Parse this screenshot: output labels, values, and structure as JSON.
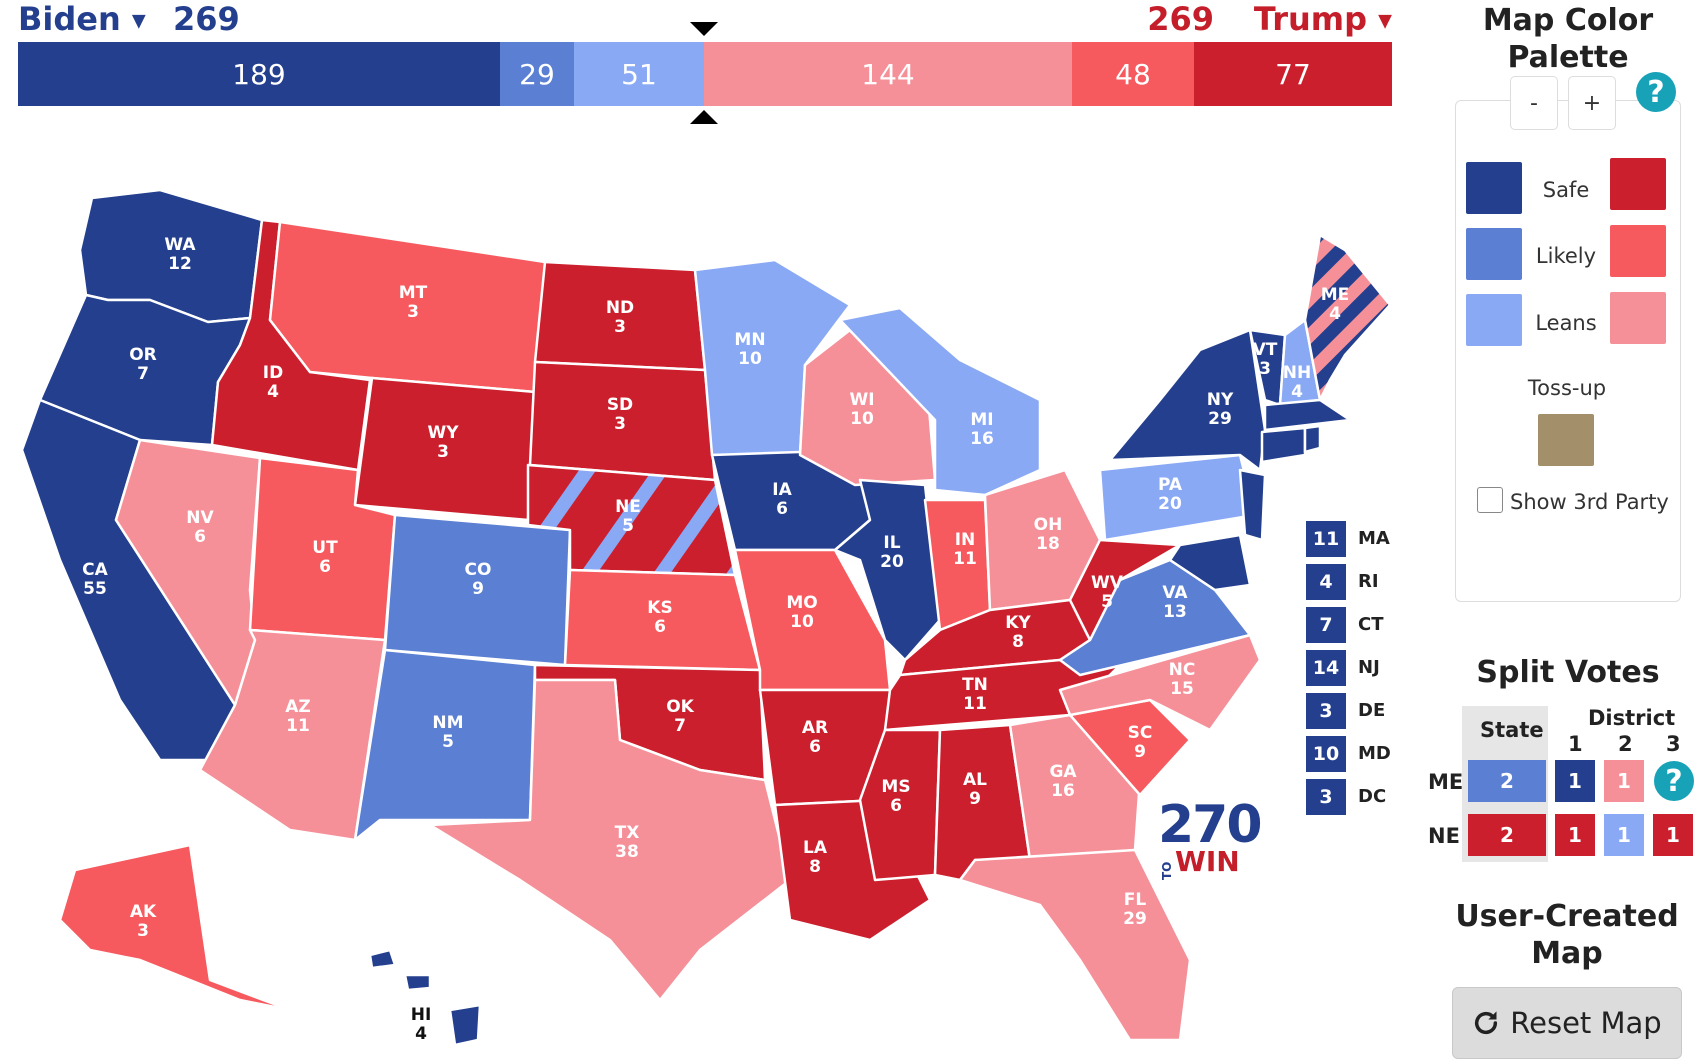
{
  "header": {
    "left_candidate": "Biden",
    "right_candidate": "Trump",
    "left_total": "269",
    "right_total": "269",
    "caret": "▼"
  },
  "bar": [
    {
      "value": "189",
      "color": "#233f8e"
    },
    {
      "value": "29",
      "color": "#5b7fd2"
    },
    {
      "value": "51",
      "color": "#8aa9f5"
    },
    {
      "value": "144",
      "color": "#f59099"
    },
    {
      "value": "48",
      "color": "#f65a5e"
    },
    {
      "value": "77",
      "color": "#cc1f2d"
    }
  ],
  "colors": {
    "safe_d": "#233f8e",
    "likely_d": "#5b7fd2",
    "leans_d": "#8aa9f5",
    "safe_r": "#cc1f2d",
    "likely_r": "#f65a5e",
    "leans_r": "#f59099",
    "tossup": "#a3906b"
  },
  "states": [
    {
      "abbr": "WA",
      "ev": "12"
    },
    {
      "abbr": "OR",
      "ev": "7"
    },
    {
      "abbr": "CA",
      "ev": "55"
    },
    {
      "abbr": "NV",
      "ev": "6"
    },
    {
      "abbr": "ID",
      "ev": "4"
    },
    {
      "abbr": "MT",
      "ev": "3"
    },
    {
      "abbr": "WY",
      "ev": "3"
    },
    {
      "abbr": "UT",
      "ev": "6"
    },
    {
      "abbr": "AZ",
      "ev": "11"
    },
    {
      "abbr": "CO",
      "ev": "9"
    },
    {
      "abbr": "NM",
      "ev": "5"
    },
    {
      "abbr": "ND",
      "ev": "3"
    },
    {
      "abbr": "SD",
      "ev": "3"
    },
    {
      "abbr": "NE",
      "ev": "5"
    },
    {
      "abbr": "KS",
      "ev": "6"
    },
    {
      "abbr": "OK",
      "ev": "7"
    },
    {
      "abbr": "TX",
      "ev": "38"
    },
    {
      "abbr": "MN",
      "ev": "10"
    },
    {
      "abbr": "IA",
      "ev": "6"
    },
    {
      "abbr": "MO",
      "ev": "10"
    },
    {
      "abbr": "AR",
      "ev": "6"
    },
    {
      "abbr": "LA",
      "ev": "8"
    },
    {
      "abbr": "WI",
      "ev": "10"
    },
    {
      "abbr": "IL",
      "ev": "20"
    },
    {
      "abbr": "MI",
      "ev": "16"
    },
    {
      "abbr": "IN",
      "ev": "11"
    },
    {
      "abbr": "OH",
      "ev": "18"
    },
    {
      "abbr": "KY",
      "ev": "8"
    },
    {
      "abbr": "TN",
      "ev": "11"
    },
    {
      "abbr": "MS",
      "ev": "6"
    },
    {
      "abbr": "AL",
      "ev": "9"
    },
    {
      "abbr": "GA",
      "ev": "16"
    },
    {
      "abbr": "FL",
      "ev": "29"
    },
    {
      "abbr": "SC",
      "ev": "9"
    },
    {
      "abbr": "NC",
      "ev": "15"
    },
    {
      "abbr": "VA",
      "ev": "13"
    },
    {
      "abbr": "WV",
      "ev": "5"
    },
    {
      "abbr": "PA",
      "ev": "20"
    },
    {
      "abbr": "NY",
      "ev": "29"
    },
    {
      "abbr": "VT",
      "ev": "3"
    },
    {
      "abbr": "NH",
      "ev": "4"
    },
    {
      "abbr": "ME",
      "ev": "4"
    },
    {
      "abbr": "AK",
      "ev": "3"
    },
    {
      "abbr": "HI",
      "ev": "4"
    }
  ],
  "small_states": [
    {
      "ev": "11",
      "abbr": "MA"
    },
    {
      "ev": "4",
      "abbr": "RI"
    },
    {
      "ev": "7",
      "abbr": "CT"
    },
    {
      "ev": "14",
      "abbr": "NJ"
    },
    {
      "ev": "3",
      "abbr": "DE"
    },
    {
      "ev": "10",
      "abbr": "MD"
    },
    {
      "ev": "3",
      "abbr": "DC"
    }
  ],
  "logo": {
    "number": "270",
    "to": "TO",
    "win": "WIN"
  },
  "palette": {
    "title": "Map Color Palette",
    "minus": "-",
    "plus": "+",
    "help": "?",
    "safe": "Safe",
    "likely": "Likely",
    "leans": "Leans",
    "tossup": "Toss-up",
    "show_third_party": "Show 3rd Party"
  },
  "split_votes": {
    "title": "Split Votes",
    "state_header": "State",
    "district_header": "District",
    "districts": [
      "1",
      "2",
      "3"
    ],
    "rows": [
      {
        "label": "ME",
        "state": "2",
        "d1": "1",
        "d2": "1"
      },
      {
        "label": "NE",
        "state": "2",
        "d1": "1",
        "d2": "1",
        "d3": "1"
      }
    ],
    "help": "?"
  },
  "footer": {
    "title": "User-Created Map",
    "reset_icon": "refresh-icon",
    "reset_label": "Reset Map"
  }
}
